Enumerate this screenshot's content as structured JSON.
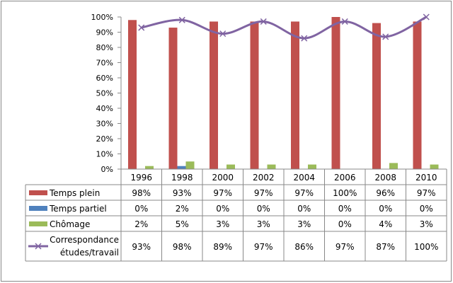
{
  "chart_data": {
    "type": "bar",
    "categories": [
      "1996",
      "1998",
      "2000",
      "2002",
      "2004",
      "2006",
      "2008",
      "2010"
    ],
    "ylim": [
      0,
      100
    ],
    "yticks": [
      "0%",
      "10%",
      "20%",
      "30%",
      "40%",
      "50%",
      "60%",
      "70%",
      "80%",
      "90%",
      "100%"
    ],
    "series": [
      {
        "name": "Temps plein",
        "kind": "bar",
        "color": "#C0504D",
        "values": [
          98,
          93,
          97,
          97,
          97,
          100,
          96,
          97
        ],
        "labels": [
          "98%",
          "93%",
          "97%",
          "97%",
          "97%",
          "100%",
          "96%",
          "97%"
        ]
      },
      {
        "name": "Temps partiel",
        "kind": "bar",
        "color": "#4F81BD",
        "values": [
          0,
          2,
          0,
          0,
          0,
          0,
          0,
          0
        ],
        "labels": [
          "0%",
          "2%",
          "0%",
          "0%",
          "0%",
          "0%",
          "0%",
          "0%"
        ]
      },
      {
        "name": "Chômage",
        "kind": "bar",
        "color": "#9BBB59",
        "values": [
          2,
          5,
          3,
          3,
          3,
          0,
          4,
          3
        ],
        "labels": [
          "2%",
          "5%",
          "3%",
          "3%",
          "3%",
          "0%",
          "4%",
          "3%"
        ]
      },
      {
        "name": "Correspondance études/travail",
        "name_lines": [
          "Correspondance",
          "études/travail"
        ],
        "kind": "line",
        "color": "#8064A2",
        "values": [
          93,
          98,
          89,
          97,
          86,
          97,
          87,
          100
        ],
        "labels": [
          "93%",
          "98%",
          "89%",
          "97%",
          "86%",
          "97%",
          "87%",
          "100%"
        ]
      }
    ],
    "legend": "data-table-left"
  }
}
